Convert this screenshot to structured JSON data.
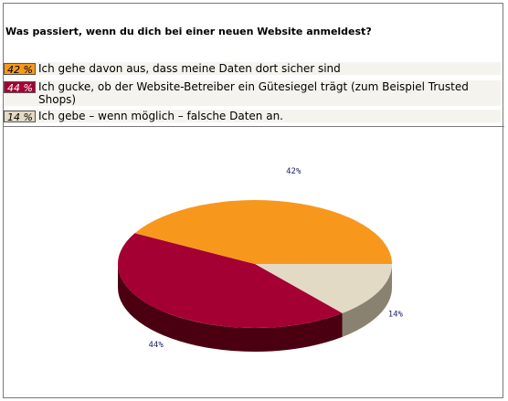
{
  "question": "Was passiert, wenn du dich bei einer neuen Website anmeldest?",
  "legend": [
    {
      "pct": "42 %",
      "text": "Ich gehe davon aus, dass meine Daten dort sicher sind",
      "color": "#f7981d"
    },
    {
      "pct": "44 %",
      "text": "Ich gucke, ob der Website-Betreiber ein Gütesiegel trägt (zum Beispiel Trusted Shops)",
      "color": "#a50034"
    },
    {
      "pct": "14 %",
      "text": "Ich gebe – wenn möglich – falsche Daten an.",
      "color": "#e3dac6"
    }
  ],
  "chart_data": {
    "type": "pie",
    "title": "Was passiert, wenn du dich bei einer neuen Website anmeldest?",
    "slices": [
      {
        "label": "Ich gehe davon aus, dass meine Daten dort sicher sind",
        "value": 42,
        "data_label": "42%",
        "color": "#f7981d",
        "side_color": "#7a4a0d"
      },
      {
        "label": "Ich gucke, ob der Website-Betreiber ein Gütesiegel trägt (zum Beispiel Trusted Shops)",
        "value": 44,
        "data_label": "44%",
        "color": "#a50034",
        "side_color": "#4a0010"
      },
      {
        "label": "Ich gebe – wenn möglich – falsche Daten an.",
        "value": 14,
        "data_label": "14%",
        "color": "#e3dac6",
        "side_color": "#8a8270"
      }
    ]
  }
}
